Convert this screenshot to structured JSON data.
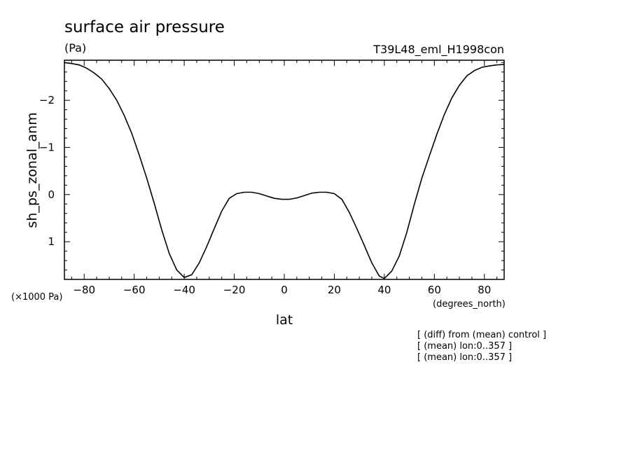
{
  "colors": {
    "background": "#ffffff",
    "foreground": "#000000"
  },
  "chart_data": {
    "type": "line",
    "title": "surface air pressure",
    "units": "(Pa)",
    "experiment": "T39L48_eml_H1998con",
    "xlabel": "lat",
    "ylabel": "sh_ps_zonal_anm",
    "x_units": "(degrees_north)",
    "y_scale_note": "(×1000 Pa)",
    "xlim": [
      -87.9,
      87.9
    ],
    "ylim": [
      1.8,
      -2.85
    ],
    "y_axis_inverted": true,
    "x_tick_labels": [
      "−80",
      "−60",
      "−40",
      "−20",
      "0",
      "20",
      "40",
      "60",
      "80"
    ],
    "y_tick_labels": [
      "−2",
      "−1",
      "0",
      "1"
    ],
    "notes": [
      "[ (diff) from (mean) control ]",
      "[ (mean) lon:0..357 ]",
      "[ (mean) lon:0..357 ]"
    ],
    "series": [
      {
        "x": [
          -87.9,
          -85,
          -82,
          -79,
          -76,
          -73,
          -70,
          -67,
          -64,
          -61,
          -58,
          -55,
          -52,
          -49,
          -46,
          -43,
          -40,
          -37,
          -34,
          -31,
          -28,
          -25,
          -22,
          -19,
          -16,
          -13,
          -10,
          -7,
          -4,
          -1,
          2,
          5,
          8,
          11,
          14,
          17,
          20,
          23,
          26,
          29,
          32,
          35,
          38,
          40,
          43,
          46,
          49,
          52,
          55,
          58,
          61,
          64,
          67,
          70,
          73,
          76,
          79,
          82,
          85,
          87.9
        ],
        "y": [
          -2.8,
          -2.78,
          -2.75,
          -2.68,
          -2.58,
          -2.45,
          -2.25,
          -2.0,
          -1.68,
          -1.3,
          -0.84,
          -0.35,
          0.18,
          0.75,
          1.25,
          1.6,
          1.76,
          1.7,
          1.45,
          1.1,
          0.72,
          0.35,
          0.08,
          -0.02,
          -0.05,
          -0.05,
          -0.02,
          0.03,
          0.08,
          0.1,
          0.1,
          0.07,
          0.02,
          -0.03,
          -0.05,
          -0.05,
          -0.02,
          0.1,
          0.38,
          0.72,
          1.08,
          1.45,
          1.73,
          1.78,
          1.62,
          1.3,
          0.8,
          0.2,
          -0.35,
          -0.82,
          -1.28,
          -1.7,
          -2.05,
          -2.32,
          -2.52,
          -2.63,
          -2.7,
          -2.73,
          -2.75,
          -2.76
        ]
      }
    ]
  }
}
